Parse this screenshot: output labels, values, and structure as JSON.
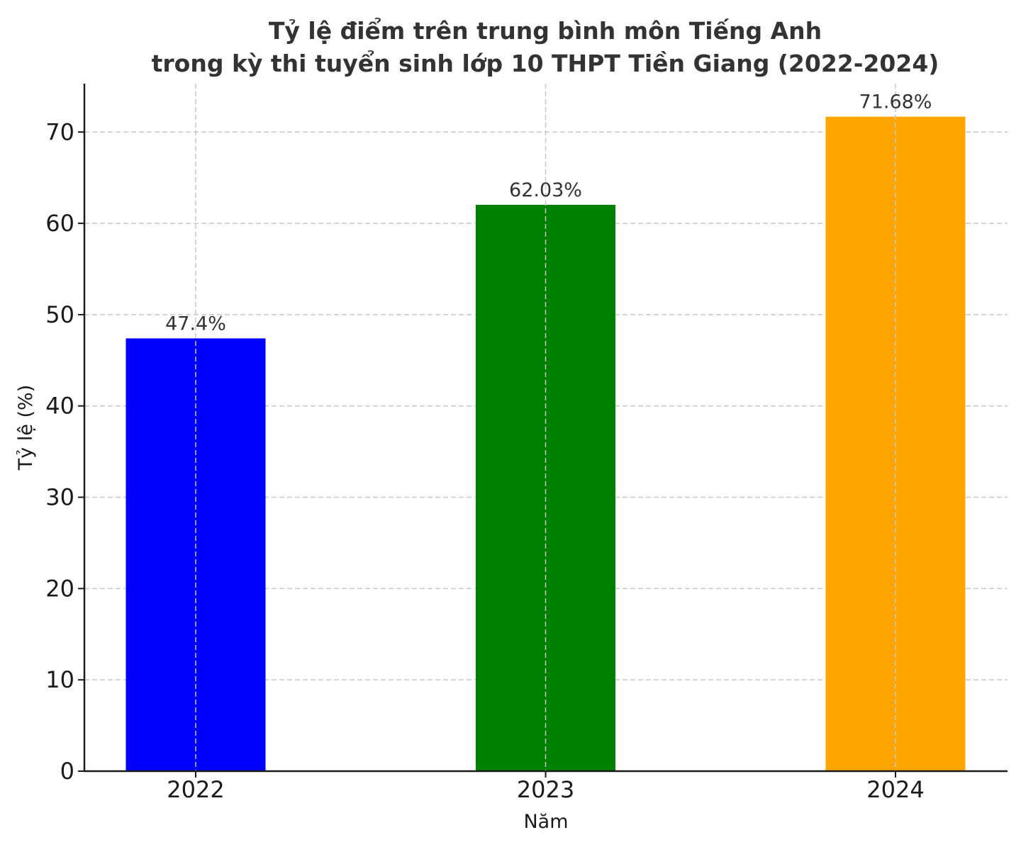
{
  "chart_data": {
    "type": "bar",
    "title": "Tỷ lệ điểm trên trung bình môn Tiếng Anh\ntrong kỳ thi tuyển sinh lớp 10 THPT Tiền Giang (2022-2024)",
    "xlabel": "Năm",
    "ylabel": "Tỷ lệ (%)",
    "categories": [
      "2022",
      "2023",
      "2024"
    ],
    "values": [
      47.4,
      62.03,
      71.68
    ],
    "data_labels": [
      "47.4%",
      "62.03%",
      "71.68%"
    ],
    "colors": [
      "#0000ff",
      "#008000",
      "#ffa500"
    ],
    "ylim": [
      0,
      75.3
    ],
    "yticks": [
      0,
      10,
      20,
      30,
      40,
      50,
      60,
      70
    ],
    "grid": true,
    "legend": "none"
  }
}
